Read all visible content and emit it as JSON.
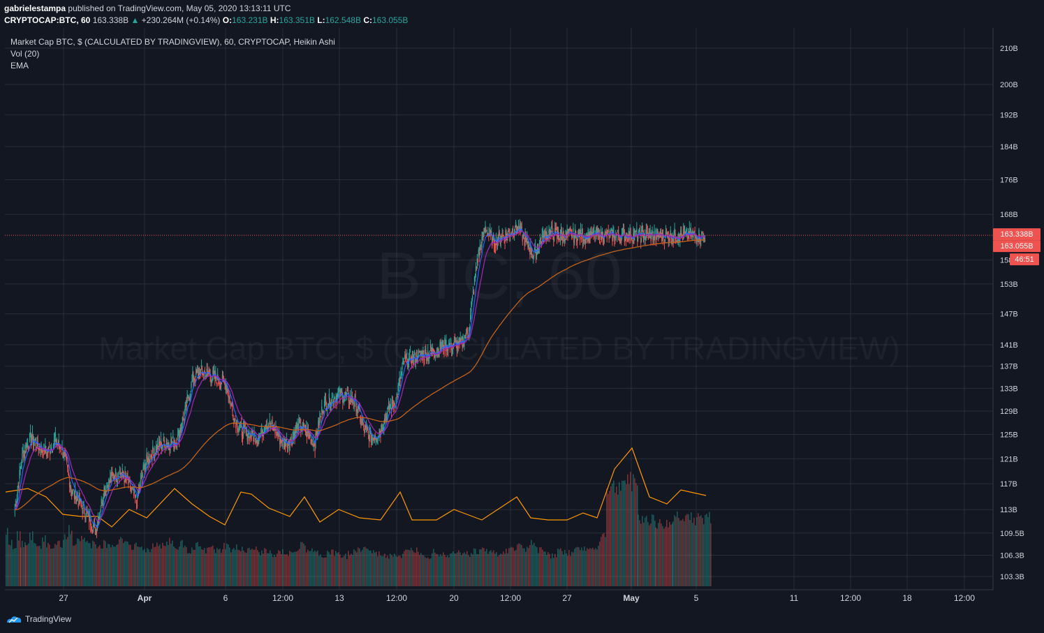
{
  "header": {
    "author": "gabrielestampa",
    "published_text": "published on TradingView.com, May 05, 2020 13:13:11 UTC",
    "symbol": "CRYPTOCAP:BTC, 60",
    "last": "163.338B",
    "change_arrow": "▲",
    "change": "+230.264M (+0.14%)",
    "o_label": "O:",
    "o_value": "163.231B",
    "h_label": "H:",
    "h_value": "163.351B",
    "l_label": "L:",
    "l_value": "162.548B",
    "c_label": "C:",
    "c_value": "163.055B"
  },
  "legend": {
    "main": "Market Cap BTC, $ (CALCULATED BY TRADINGVIEW), 60, CRYPTOCAP, Heikin Ashi",
    "volume": "Vol (20)",
    "ema": "EMA"
  },
  "watermark": {
    "big": "BTC, 60",
    "small": "Market Cap BTC, $ (CALCULATED BY TRADINGVIEW)"
  },
  "price_labels": {
    "last_price": "163.338B",
    "close_price": "163.055B",
    "countdown": "46:51"
  },
  "footer": {
    "brand": "TradingView"
  },
  "colors": {
    "background": "#131722",
    "grid": "#2a2e39",
    "up": "#26a69a",
    "down": "#ef5350",
    "ema_fast": "#2962ff",
    "ema_mid": "#9c27b0",
    "ema_slow": "#ff9800",
    "volume_ma": "#ff9800",
    "last_price_line": "#ef5350"
  },
  "chart_data": {
    "type": "candlestick",
    "style": "Heikin Ashi",
    "interval": "60",
    "y_ticks": [
      {
        "label": "210B",
        "value": 210
      },
      {
        "label": "200B",
        "value": 200
      },
      {
        "label": "192B",
        "value": 192
      },
      {
        "label": "184B",
        "value": 184
      },
      {
        "label": "176B",
        "value": 176
      },
      {
        "label": "168B",
        "value": 168
      },
      {
        "label": "158B",
        "value": 158
      },
      {
        "label": "153B",
        "value": 153
      },
      {
        "label": "147B",
        "value": 147
      },
      {
        "label": "141B",
        "value": 141
      },
      {
        "label": "137B",
        "value": 137
      },
      {
        "label": "133B",
        "value": 133
      },
      {
        "label": "129B",
        "value": 129
      },
      {
        "label": "125B",
        "value": 125
      },
      {
        "label": "121B",
        "value": 121
      },
      {
        "label": "117B",
        "value": 117
      },
      {
        "label": "113B",
        "value": 113
      },
      {
        "label": "109.5B",
        "value": 109.5
      },
      {
        "label": "106.3B",
        "value": 106.3
      },
      {
        "label": "103.3B",
        "value": 103.3
      }
    ],
    "y_scale": "log",
    "x_ticks": [
      "27",
      "Apr",
      "6",
      "12:00",
      "13",
      "12:00",
      "20",
      "12:00",
      "27",
      "May",
      "5",
      "11",
      "12:00",
      "18",
      "12:00"
    ],
    "x_tick_bold": [
      false,
      true,
      false,
      false,
      false,
      false,
      false,
      false,
      false,
      true,
      false,
      false,
      false,
      false,
      false
    ],
    "price_series_approx": {
      "x_days_from_mar24": [
        0,
        0.5,
        1,
        1.5,
        2,
        2.5,
        3,
        3.5,
        4,
        4.5,
        5,
        5.5,
        6,
        6.5,
        7,
        7.5,
        8,
        8.5,
        9,
        9.5,
        10,
        10.5,
        11,
        11.5,
        12,
        12.5,
        13,
        13.5,
        14,
        14.5,
        15,
        15.5,
        16,
        16.5,
        17,
        17.5,
        18,
        18.5,
        19,
        19.5,
        20,
        20.5,
        21,
        21.5,
        22,
        22.5,
        23,
        23.5,
        24,
        24.5,
        25,
        25.5,
        26,
        26.5,
        27,
        27.5,
        28,
        28.5,
        29,
        29.5,
        30,
        30.5,
        31,
        31.5,
        32,
        32.5,
        33,
        33.5,
        34,
        34.5,
        35,
        35.5,
        36,
        36.5,
        37,
        37.5,
        38,
        38.5,
        39,
        39.5,
        40,
        40.5,
        41,
        41.5,
        42
      ],
      "close": [
        113,
        122,
        124.5,
        123,
        122,
        124,
        122,
        116,
        114,
        112,
        110,
        116,
        118,
        119,
        117,
        114,
        120,
        122,
        123.5,
        123.5,
        124,
        129,
        135,
        136,
        135.5,
        134.5,
        134,
        128,
        125.5,
        125,
        124.5,
        127,
        126,
        123.5,
        124,
        126.5,
        125.5,
        123.5,
        130,
        131,
        132,
        131.5,
        130.5,
        126,
        124.5,
        125.5,
        129,
        131,
        138,
        138.5,
        139,
        139.5,
        140,
        141,
        141,
        141,
        144,
        158,
        165,
        162,
        163,
        164,
        165,
        162,
        159,
        163,
        164,
        163.3,
        163.3,
        163.3,
        163.3,
        163.3,
        163.3,
        163.3,
        163.3,
        163.3,
        163.3,
        163.3,
        163.3,
        163.3,
        163.3,
        163.3,
        163.3,
        163.3,
        163.3
      ]
    }
  }
}
